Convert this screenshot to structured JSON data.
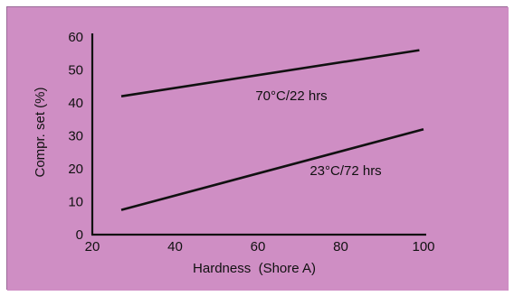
{
  "colors": {
    "background": "#cf8ec4",
    "line": "#111111",
    "axis": "#111111",
    "text": "#111111"
  },
  "chart_data": {
    "type": "line",
    "title": "",
    "xlabel": "Hardness  (Shore A)",
    "ylabel": "Compr. set (%)",
    "xlim": [
      20,
      100
    ],
    "ylim": [
      0,
      60
    ],
    "xticks": [
      20,
      40,
      60,
      80,
      100
    ],
    "yticks": [
      0,
      10,
      20,
      30,
      40,
      50,
      60
    ],
    "xtick_labels": [
      "20",
      "40",
      "60",
      "80",
      "100"
    ],
    "ytick_labels": [
      "0",
      "10",
      "20",
      "30",
      "40",
      "50",
      "60"
    ],
    "grid": false,
    "series": [
      {
        "name": "70°C/22 hrs",
        "x": [
          27,
          99
        ],
        "y": [
          42,
          56
        ]
      },
      {
        "name": "23°C/72 hrs",
        "x": [
          27,
          100
        ],
        "y": [
          7.5,
          32
        ]
      }
    ]
  }
}
